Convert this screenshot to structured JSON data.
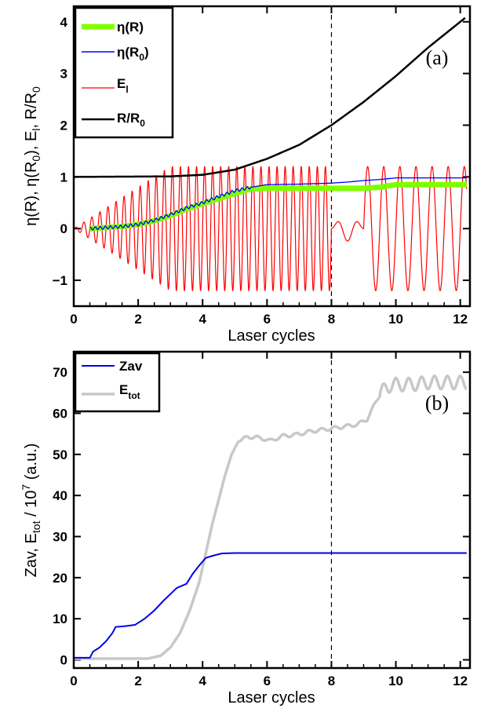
{
  "chart_data": [
    {
      "type": "line",
      "panel_label": "(a)",
      "xlabel": "Laser cycles",
      "ylabel": "η(R), η(R0), El, R/R0",
      "xlim": [
        0,
        12.3
      ],
      "ylim": [
        -1.5,
        4.3
      ],
      "x_ticks": [
        0,
        2,
        4,
        6,
        8,
        10,
        12
      ],
      "y_ticks": [
        -1,
        0,
        1,
        2,
        3,
        4
      ],
      "legend_position": "top-left",
      "vline_x": 8,
      "series": [
        {
          "name": "η(R)",
          "color": "#7fff00",
          "points": [
            [
              0.5,
              0.0
            ],
            [
              1.0,
              0.02
            ],
            [
              1.5,
              0.04
            ],
            [
              2.0,
              0.08
            ],
            [
              2.5,
              0.15
            ],
            [
              3.0,
              0.25
            ],
            [
              3.5,
              0.38
            ],
            [
              4.0,
              0.48
            ],
            [
              4.5,
              0.58
            ],
            [
              5.0,
              0.68
            ],
            [
              5.5,
              0.77
            ],
            [
              6.0,
              0.78
            ],
            [
              7.0,
              0.78
            ],
            [
              8.0,
              0.78
            ],
            [
              9.0,
              0.78
            ],
            [
              9.5,
              0.8
            ],
            [
              10.0,
              0.85
            ],
            [
              12.2,
              0.85
            ]
          ]
        },
        {
          "name": "η(R0)",
          "color": "#0000ff",
          "points": [
            [
              0.5,
              0.0
            ],
            [
              1.0,
              0.02
            ],
            [
              1.5,
              0.04
            ],
            [
              2.0,
              0.08
            ],
            [
              2.5,
              0.16
            ],
            [
              3.0,
              0.27
            ],
            [
              3.5,
              0.4
            ],
            [
              4.0,
              0.5
            ],
            [
              4.5,
              0.62
            ],
            [
              5.0,
              0.73
            ],
            [
              5.5,
              0.8
            ],
            [
              6.0,
              0.85
            ],
            [
              7.0,
              0.86
            ],
            [
              8.0,
              0.88
            ],
            [
              8.5,
              0.9
            ],
            [
              9.0,
              0.93
            ],
            [
              9.5,
              0.95
            ],
            [
              10.0,
              0.98
            ],
            [
              12.2,
              0.98
            ]
          ]
        },
        {
          "name": "El",
          "color": "#ff0000",
          "amplitude": 1.2,
          "cycle_period": 1,
          "off_window": [
            8,
            9
          ]
        },
        {
          "name": "R/R0",
          "color": "#000000",
          "points": [
            [
              0,
              1.0
            ],
            [
              3.0,
              1.01
            ],
            [
              4.0,
              1.04
            ],
            [
              5.0,
              1.14
            ],
            [
              6.0,
              1.35
            ],
            [
              7.0,
              1.62
            ],
            [
              8.0,
              2.0
            ],
            [
              9.0,
              2.45
            ],
            [
              10.0,
              2.95
            ],
            [
              11.0,
              3.5
            ],
            [
              12.2,
              4.1
            ]
          ]
        }
      ]
    },
    {
      "type": "line",
      "panel_label": "(b)",
      "xlabel": "Laser cycles",
      "ylabel": "Zav, Etot / 10^7 (a.u.)",
      "xlim": [
        0,
        12.3
      ],
      "ylim": [
        -2,
        75
      ],
      "x_ticks": [
        0,
        2,
        4,
        6,
        8,
        10,
        12
      ],
      "y_ticks": [
        0,
        10,
        20,
        30,
        40,
        50,
        60,
        70
      ],
      "legend_position": "top-left",
      "vline_x": 8,
      "series": [
        {
          "name": "Zav",
          "color": "#0000ee",
          "points": [
            [
              0,
              0.5
            ],
            [
              0.5,
              0.5
            ],
            [
              0.6,
              2.0
            ],
            [
              0.8,
              3.0
            ],
            [
              1.0,
              4.5
            ],
            [
              1.2,
              6.5
            ],
            [
              1.3,
              8.0
            ],
            [
              1.6,
              8.2
            ],
            [
              1.9,
              8.5
            ],
            [
              2.2,
              10.0
            ],
            [
              2.5,
              12.0
            ],
            [
              2.8,
              14.5
            ],
            [
              3.0,
              16.0
            ],
            [
              3.2,
              17.5
            ],
            [
              3.5,
              18.5
            ],
            [
              3.7,
              21.0
            ],
            [
              3.9,
              23.0
            ],
            [
              4.1,
              24.8
            ],
            [
              4.3,
              25.3
            ],
            [
              4.6,
              25.9
            ],
            [
              5.0,
              26.0
            ],
            [
              12.2,
              26.0
            ]
          ]
        },
        {
          "name": "Etot",
          "color": "#c8c8c8",
          "points": [
            [
              0,
              0.3
            ],
            [
              2.3,
              0.3
            ],
            [
              2.7,
              1.0
            ],
            [
              3.0,
              3.0
            ],
            [
              3.3,
              6.5
            ],
            [
              3.6,
              12.0
            ],
            [
              3.9,
              19.0
            ],
            [
              4.1,
              26.0
            ],
            [
              4.3,
              33.0
            ],
            [
              4.5,
              39.0
            ],
            [
              4.7,
              45.0
            ],
            [
              4.9,
              50.0
            ],
            [
              5.1,
              53.0
            ],
            [
              5.4,
              54.3
            ],
            [
              5.8,
              54.0
            ],
            [
              6.1,
              53.3
            ],
            [
              6.5,
              54.5
            ],
            [
              6.9,
              54.8
            ],
            [
              7.3,
              55.5
            ],
            [
              7.6,
              55.9
            ],
            [
              8.0,
              56.3
            ],
            [
              8.5,
              56.9
            ],
            [
              8.8,
              57.3
            ],
            [
              9.1,
              58.5
            ],
            [
              9.3,
              61.5
            ],
            [
              9.5,
              64.5
            ],
            [
              9.7,
              66.5
            ],
            [
              10.0,
              67.0
            ],
            [
              10.5,
              67.0
            ],
            [
              11.0,
              67.5
            ],
            [
              11.5,
              67.5
            ],
            [
              12.2,
              67.5
            ]
          ]
        }
      ]
    }
  ]
}
